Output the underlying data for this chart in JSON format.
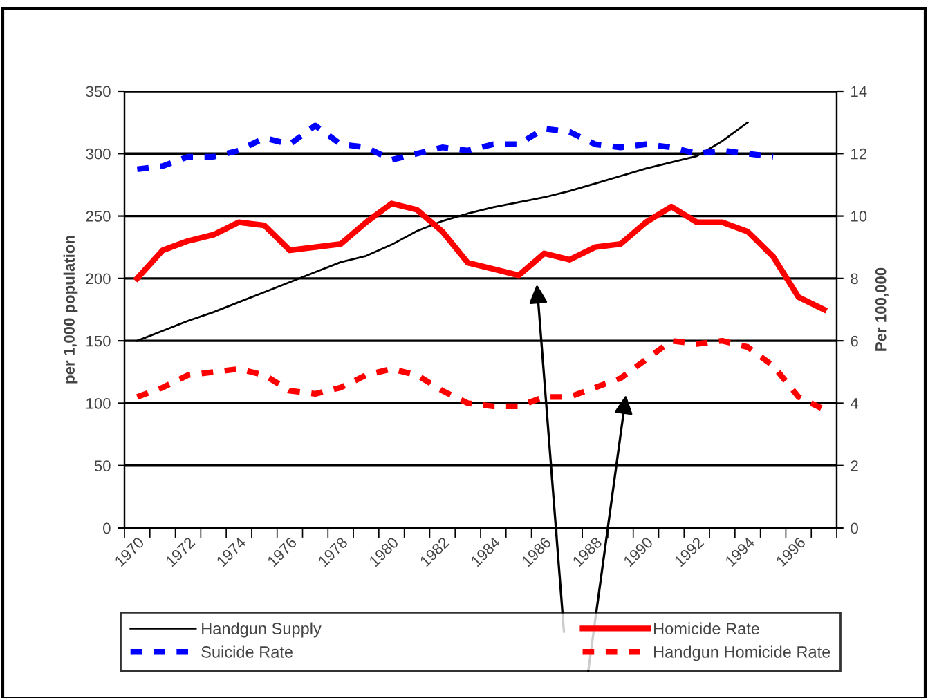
{
  "chart_data": {
    "type": "line",
    "ylabel": "per 1,000 population",
    "y2label": "Per 100,000",
    "categories": [
      "1970",
      null,
      "1972",
      null,
      "1974",
      null,
      "1976",
      null,
      "1978",
      null,
      "1980",
      null,
      "1982",
      null,
      "1984",
      null,
      "1986",
      null,
      "1988",
      null,
      "1990",
      null,
      "1992",
      null,
      "1994",
      null,
      "1996",
      null
    ],
    "ylim": [
      0,
      350
    ],
    "yticks": [
      0,
      50,
      100,
      150,
      200,
      250,
      300,
      350
    ],
    "y2lim": [
      0,
      14
    ],
    "y2ticks": [
      0,
      2,
      4,
      6,
      8,
      10,
      12,
      14
    ],
    "grid": "y",
    "legend": "bottom",
    "marker": "none",
    "series": [
      {
        "name": "Handgun Supply",
        "color": "#000000",
        "line_style": "solid",
        "values": [
          150,
          158,
          166,
          173,
          181,
          189,
          197,
          205,
          213,
          218,
          227,
          238,
          246,
          252,
          257,
          261,
          265,
          270,
          276,
          282,
          288,
          293,
          298,
          310,
          325,
          null,
          null,
          null
        ]
      },
      {
        "name": "Homicide Rate",
        "color": "#ff0000",
        "line_style": "solid",
        "axis": "y2",
        "values": [
          8.0,
          8.9,
          9.2,
          9.4,
          9.8,
          9.7,
          8.9,
          9.0,
          9.1,
          9.8,
          10.4,
          10.2,
          9.5,
          8.5,
          8.3,
          8.1,
          8.8,
          8.6,
          9.0,
          9.1,
          9.8,
          10.3,
          9.8,
          9.8,
          9.5,
          8.7,
          7.4,
          7.0
        ]
      },
      {
        "name": "Suicide Rate",
        "color": "#0000ff",
        "line_style": "dashed",
        "axis": "y2",
        "values": [
          11.5,
          11.6,
          11.9,
          11.9,
          12.1,
          12.5,
          12.3,
          12.9,
          12.3,
          12.2,
          11.8,
          12.0,
          12.2,
          12.1,
          12.3,
          12.3,
          12.8,
          12.7,
          12.3,
          12.2,
          12.3,
          12.2,
          12.0,
          12.1,
          12.0,
          11.9,
          null,
          null
        ]
      },
      {
        "name": "Handgun Homicide Rate",
        "color": "#ff0000",
        "line_style": "dashed",
        "axis": "y2",
        "values": [
          4.2,
          4.5,
          4.9,
          5.0,
          5.1,
          4.9,
          4.4,
          4.3,
          4.5,
          4.9,
          5.1,
          4.9,
          4.4,
          4.0,
          3.9,
          3.9,
          4.2,
          4.2,
          4.5,
          4.8,
          5.4,
          6.0,
          5.9,
          6.0,
          5.8,
          5.2,
          4.2,
          3.8
        ]
      }
    ]
  }
}
